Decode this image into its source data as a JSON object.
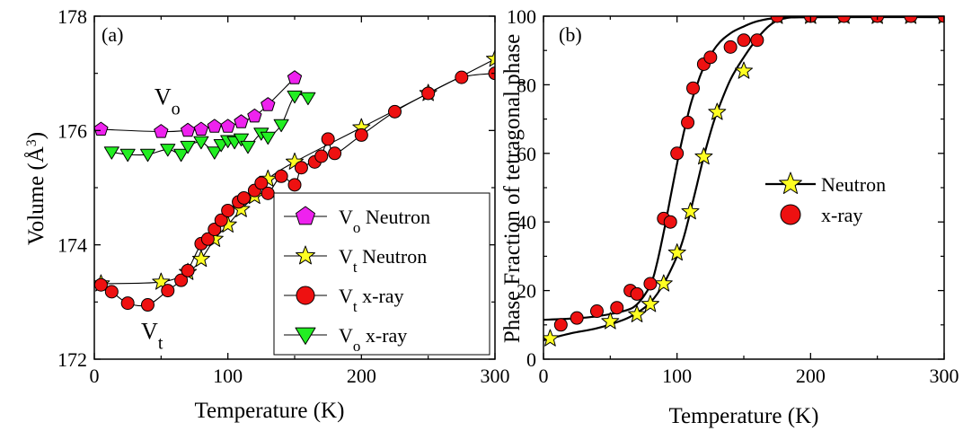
{
  "chart_data": [
    {
      "type": "scatter",
      "panel_label": "(a)",
      "xlabel": "Temperature (K)",
      "ylabel_main": "Volume (Å",
      "ylabel_sup": "3",
      "ylabel_end": ")",
      "xlim": [
        0,
        300
      ],
      "ylim": [
        172,
        178
      ],
      "xticks": [
        0,
        100,
        200,
        300
      ],
      "yticks": [
        172,
        174,
        176,
        178
      ],
      "grid": false,
      "legend_position": "bottom-right",
      "annotations": [
        {
          "base": "V",
          "sub": "o",
          "x": 45,
          "y": 176.45
        },
        {
          "base": "V",
          "sub": "t",
          "x": 35,
          "y": 172.35
        }
      ],
      "series": [
        {
          "legend_base": "V",
          "legend_sub": "o",
          "legend_rest": " Neutron",
          "marker": "pentagon",
          "color": "#ee22ee",
          "line": "connect",
          "points": [
            [
              5,
              176.02
            ],
            [
              50,
              175.98
            ],
            [
              70,
              176.0
            ],
            [
              80,
              176.02
            ],
            [
              90,
              176.07
            ],
            [
              100,
              176.07
            ],
            [
              110,
              176.15
            ],
            [
              120,
              176.25
            ],
            [
              130,
              176.45
            ],
            [
              150,
              176.92
            ]
          ]
        },
        {
          "legend_base": "V",
          "legend_sub": "t",
          "legend_rest": " Neutron",
          "marker": "star",
          "color": "#ffff22",
          "line": "connect",
          "points": [
            [
              5,
              173.32
            ],
            [
              50,
              173.35
            ],
            [
              70,
              173.52
            ],
            [
              80,
              173.75
            ],
            [
              90,
              174.1
            ],
            [
              100,
              174.35
            ],
            [
              110,
              174.62
            ],
            [
              120,
              174.85
            ],
            [
              130,
              175.15
            ],
            [
              150,
              175.45
            ],
            [
              200,
              176.05
            ],
            [
              250,
              176.65
            ],
            [
              300,
              177.25
            ]
          ]
        },
        {
          "legend_base": "V",
          "legend_sub": "t",
          "legend_rest": "  x-ray",
          "marker": "circle",
          "color": "#ee1111",
          "line": "connect",
          "points": [
            [
              5,
              173.3
            ],
            [
              13,
              173.18
            ],
            [
              25,
              172.98
            ],
            [
              40,
              172.95
            ],
            [
              55,
              173.2
            ],
            [
              65,
              173.38
            ],
            [
              70,
              173.55
            ],
            [
              80,
              174.02
            ],
            [
              85,
              174.1
            ],
            [
              90,
              174.27
            ],
            [
              95,
              174.43
            ],
            [
              100,
              174.6
            ],
            [
              108,
              174.75
            ],
            [
              112,
              174.82
            ],
            [
              120,
              174.95
            ],
            [
              125,
              175.08
            ],
            [
              130,
              174.9
            ],
            [
              140,
              175.2
            ],
            [
              150,
              175.05
            ],
            [
              155,
              175.35
            ],
            [
              165,
              175.45
            ],
            [
              170,
              175.55
            ],
            [
              175,
              175.85
            ],
            [
              180,
              175.6
            ],
            [
              200,
              175.92
            ],
            [
              225,
              176.33
            ],
            [
              250,
              176.65
            ],
            [
              275,
              176.93
            ],
            [
              300,
              177.0
            ]
          ]
        },
        {
          "legend_base": "V",
          "legend_sub": "o",
          "legend_rest": "  x-ray",
          "marker": "triangle-down",
          "color": "#22ee22",
          "line": "connect",
          "points": [
            [
              13,
              175.62
            ],
            [
              25,
              175.58
            ],
            [
              40,
              175.58
            ],
            [
              55,
              175.67
            ],
            [
              65,
              175.58
            ],
            [
              70,
              175.72
            ],
            [
              80,
              175.8
            ],
            [
              90,
              175.62
            ],
            [
              95,
              175.75
            ],
            [
              100,
              175.82
            ],
            [
              105,
              175.8
            ],
            [
              110,
              175.85
            ],
            [
              115,
              175.72
            ],
            [
              125,
              175.95
            ],
            [
              130,
              175.88
            ],
            [
              140,
              176.1
            ],
            [
              150,
              176.6
            ],
            [
              160,
              176.57
            ]
          ]
        }
      ]
    },
    {
      "type": "scatter",
      "panel_label": "(b)",
      "xlabel": "Temperature (K)",
      "ylabel": "Phase Fraction of tetragonal phase",
      "xlim": [
        0,
        300
      ],
      "ylim": [
        0,
        100
      ],
      "xticks": [
        0,
        100,
        200,
        300
      ],
      "yticks": [
        0,
        20,
        40,
        60,
        80,
        100
      ],
      "grid": false,
      "legend_position": "center-right",
      "series": [
        {
          "name": "Neutron",
          "marker": "star",
          "color": "#ffff22",
          "points": [
            [
              5,
              6
            ],
            [
              50,
              11
            ],
            [
              70,
              13
            ],
            [
              80,
              16
            ],
            [
              90,
              22
            ],
            [
              100,
              31
            ],
            [
              110,
              43
            ],
            [
              120,
              59
            ],
            [
              130,
              72
            ],
            [
              150,
              84
            ],
            [
              175,
              100
            ],
            [
              200,
              100
            ],
            [
              225,
              100
            ],
            [
              250,
              100
            ],
            [
              275,
              100
            ],
            [
              300,
              100
            ]
          ],
          "fit": [
            [
              0,
              5.5
            ],
            [
              20,
              7.5
            ],
            [
              40,
              9
            ],
            [
              60,
              11.5
            ],
            [
              70,
              13.5
            ],
            [
              80,
              16.5
            ],
            [
              90,
              22
            ],
            [
              100,
              30
            ],
            [
              105,
              35.5
            ],
            [
              110,
              43
            ],
            [
              115,
              51
            ],
            [
              120,
              59
            ],
            [
              125,
              66
            ],
            [
              130,
              72
            ],
            [
              140,
              81.5
            ],
            [
              150,
              88
            ],
            [
              160,
              93.5
            ],
            [
              170,
              97.5
            ],
            [
              180,
              99.3
            ],
            [
              200,
              99.7
            ],
            [
              300,
              99.7
            ]
          ]
        },
        {
          "name": "x-ray",
          "marker": "circle",
          "color": "#ee1111",
          "points": [
            [
              13,
              10
            ],
            [
              25,
              12
            ],
            [
              40,
              14
            ],
            [
              55,
              15
            ],
            [
              65,
              20
            ],
            [
              70,
              19
            ],
            [
              80,
              22
            ],
            [
              90,
              41
            ],
            [
              95,
              40
            ],
            [
              100,
              60
            ],
            [
              108,
              69
            ],
            [
              112,
              79
            ],
            [
              120,
              86
            ],
            [
              125,
              88
            ],
            [
              140,
              91
            ],
            [
              150,
              93
            ],
            [
              160,
              93
            ],
            [
              175,
              100
            ],
            [
              200,
              100
            ],
            [
              225,
              100
            ],
            [
              250,
              100
            ],
            [
              275,
              100
            ],
            [
              300,
              100
            ]
          ],
          "fit": [
            [
              0,
              11.5
            ],
            [
              20,
              11.8
            ],
            [
              40,
              12.5
            ],
            [
              60,
              14
            ],
            [
              70,
              16
            ],
            [
              80,
              21.5
            ],
            [
              85,
              28
            ],
            [
              90,
              37
            ],
            [
              95,
              47
            ],
            [
              100,
              57
            ],
            [
              105,
              66
            ],
            [
              110,
              74
            ],
            [
              115,
              80
            ],
            [
              120,
              85
            ],
            [
              130,
              91.5
            ],
            [
              140,
              95
            ],
            [
              150,
              97
            ],
            [
              160,
              98.5
            ],
            [
              175,
              99.5
            ],
            [
              200,
              99.8
            ],
            [
              300,
              99.8
            ]
          ]
        }
      ]
    }
  ]
}
